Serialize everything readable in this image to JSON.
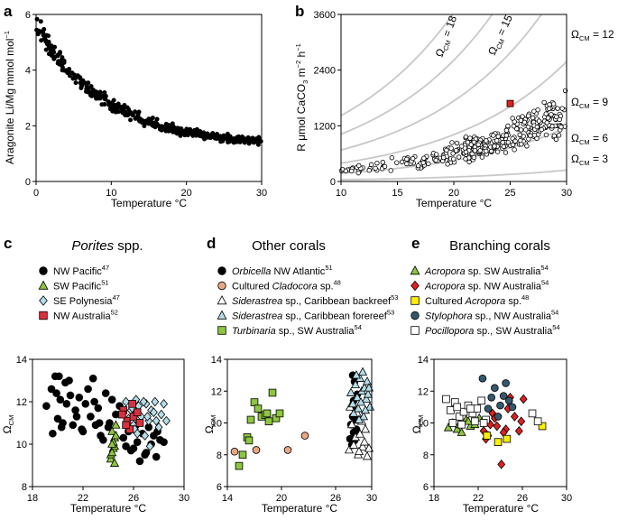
{
  "panels": {
    "a": {
      "letter": "a",
      "xlabel": "Temperature °C",
      "ylabel": "Aragonite Li/Mg mmol mol",
      "ylabel_sup": "−1",
      "xticks": [
        "0",
        "10",
        "20",
        "30"
      ],
      "yticks": [
        "0",
        "2",
        "4",
        "6"
      ]
    },
    "b": {
      "letter": "b",
      "xlabel": "Temperature °C",
      "ylabel_pre": "R μmol CaCO",
      "ylabel_sub": "3",
      "ylabel_post": " m",
      "ylabel_sup1": "−2",
      "ylabel_post2": " h",
      "ylabel_sup2": "−1",
      "xticks": [
        "10",
        "15",
        "20",
        "25",
        "30"
      ],
      "yticks": [
        "0",
        "1200",
        "2400",
        "3600"
      ],
      "omega_labels": [
        "Ω",
        "CM",
        "= 18",
        "= 15",
        "= 12",
        "= 9",
        "= 6",
        "= 3"
      ]
    },
    "c": {
      "letter": "c",
      "title_italic": "Porites",
      "title_rest": " spp.",
      "legend": [
        {
          "text": "NW Pacific",
          "sup": "47"
        },
        {
          "text": "SW Pacific",
          "sup": "51"
        },
        {
          "text": "SE Polynesia",
          "sup": "47"
        },
        {
          "text": "NW Australia",
          "sup": "52"
        }
      ],
      "xticks": [
        "18",
        "22",
        "26",
        "30"
      ],
      "yticks": [
        "8",
        "10",
        "12",
        "14"
      ],
      "xlabel": "Temperature °C",
      "ylabel": "Ω",
      "ylabel_sub": "CM"
    },
    "d": {
      "letter": "d",
      "title": "Other corals",
      "legend": [
        {
          "it": "Orbicella",
          "rest": " NW Atlantic",
          "sup": "51"
        },
        {
          "pre": "Cultured ",
          "it": "Cladocora",
          "rest": " sp.",
          "sup": "48"
        },
        {
          "it": "Siderastrea",
          "rest": " sp., Caribbean backreef",
          "sup": "53"
        },
        {
          "it": "Siderastrea",
          "rest": " sp., Caribbean forereef",
          "sup": "53"
        },
        {
          "it": "Turbinaria",
          "rest": " sp., SW Australia",
          "sup": "54"
        }
      ],
      "xticks": [
        "14",
        "20",
        "26",
        "30"
      ],
      "yticks": [
        "6",
        "8",
        "10",
        "12",
        "14"
      ],
      "xlabel": "Temperature °C",
      "ylabel": "Ω",
      "ylabel_sub": "CM"
    },
    "e": {
      "letter": "e",
      "title": "Branching corals",
      "legend": [
        {
          "it": "Acropora",
          "rest": " sp. SW Australia",
          "sup": "54"
        },
        {
          "it": "Acropora",
          "rest": " sp. NW Australia",
          "sup": "54"
        },
        {
          "pre": "Cultured ",
          "it": "Acropora",
          "rest": " sp.",
          "sup": "48"
        },
        {
          "it": "Stylophora",
          "rest": " sp., NW Australia",
          "sup": "54"
        },
        {
          "it": "Pocillopora",
          "rest": " sp., SW Australia",
          "sup": "54"
        }
      ],
      "xticks": [
        "18",
        "22",
        "26",
        "30"
      ],
      "yticks": [
        "6",
        "8",
        "10",
        "12",
        "14"
      ],
      "xlabel": "Temperature °C",
      "ylabel": "Ω",
      "ylabel_sub": "CM"
    }
  },
  "colors": {
    "green": "#8dc63f",
    "light_blue": "#b3dde8",
    "red": "#e02020",
    "orange": "#e8a882",
    "yellow": "#ffee00",
    "teal": "#34596e",
    "grey_curve": "#c8c8c8",
    "nw_aus": "#d93040"
  },
  "chart_data": [
    {
      "panel": "a",
      "type": "scatter",
      "xlim": [
        0,
        30
      ],
      "ylim": [
        0,
        6
      ],
      "title": "",
      "xlabel": "Temperature °C",
      "ylabel": "Aragonite Li/Mg mmol mol−1",
      "series": [
        {
          "name": "Aragonite Li/Mg",
          "x_range": [
            0,
            30
          ],
          "trend_start": 5.5,
          "trend_end": 1.3,
          "n": 420
        }
      ]
    },
    {
      "panel": "b",
      "type": "scatter",
      "xlim": [
        10,
        30
      ],
      "ylim": [
        0,
        3600
      ],
      "xlabel": "Temperature °C",
      "ylabel": "R μmol CaCO3 m−2 h−1",
      "curves": [
        {
          "omega": 18
        },
        {
          "omega": 15
        },
        {
          "omega": 12
        },
        {
          "omega": 9
        },
        {
          "omega": 6
        },
        {
          "omega": 3
        }
      ],
      "highlight": {
        "x": 25,
        "y": 1680
      },
      "n": 340
    },
    {
      "panel": "c",
      "type": "scatter",
      "xlim": [
        18,
        30
      ],
      "ylim": [
        8,
        14
      ],
      "xlabel": "Temperature °C",
      "ylabel": "ΩCM",
      "series": [
        {
          "name": "NW Pacific",
          "marker": "circle",
          "x": [
            19.1,
            19.5,
            19.8,
            20.2,
            20.0,
            20.6,
            21.0,
            21.4,
            20.3,
            19.6,
            20.9,
            21.7,
            22.2,
            22.6,
            23.0,
            23.4,
            23.8,
            22.4,
            21.9,
            22.9,
            24.1,
            24.6,
            25.2,
            25.6,
            26.0,
            26.3,
            26.7,
            27.0,
            27.4,
            27.8,
            28.1,
            24.9,
            25.4,
            26.5,
            27.2,
            27.6,
            20.4,
            21.2,
            22.8,
            23.6,
            19.9,
            20.7,
            21.5,
            23.2,
            24.3,
            26.9,
            27.9,
            25.8,
            26.2,
            28.4,
            20.1,
            22.0,
            23.3,
            24.0
          ],
          "y": [
            11.8,
            12.6,
            13.2,
            12.1,
            11.2,
            12.9,
            12.3,
            11.6,
            10.8,
            10.5,
            13.0,
            12.2,
            11.9,
            11.3,
            10.9,
            10.4,
            12.4,
            12.6,
            10.7,
            12.0,
            11.0,
            11.4,
            10.3,
            10.6,
            9.8,
            10.1,
            10.5,
            9.6,
            10.0,
            9.4,
            10.2,
            11.8,
            9.9,
            9.2,
            10.8,
            10.4,
            11.0,
            10.9,
            13.1,
            10.2,
            12.4,
            11.9,
            11.3,
            11.7,
            12.1,
            9.5,
            10.6,
            9.7,
            10.9,
            10.1,
            13.2,
            10.6,
            11.0,
            10.8
          ]
        },
        {
          "name": "SW Pacific",
          "marker": "triangle",
          "x": [
            24.2,
            24.4,
            24.5,
            24.3,
            24.6,
            24.2,
            24.5,
            24.4,
            24.3,
            24.6,
            24.5,
            24.3
          ],
          "y": [
            9.3,
            9.8,
            10.3,
            10.6,
            10.9,
            9.5,
            9.9,
            10.1,
            9.6,
            10.4,
            9.1,
            10.0
          ]
        },
        {
          "name": "SE Polynesia",
          "marker": "diamond",
          "x": [
            25.4,
            25.8,
            26.2,
            26.6,
            27.0,
            27.4,
            27.8,
            28.2,
            26.0,
            26.4,
            26.8,
            27.2,
            27.6,
            28.0,
            25.6,
            26.9,
            27.3,
            28.4,
            26.1,
            27.7,
            25.9,
            26.3,
            27.1,
            28.6
          ],
          "y": [
            12.0,
            11.6,
            12.1,
            11.3,
            11.9,
            11.6,
            11.1,
            11.4,
            10.9,
            11.8,
            12.0,
            11.1,
            11.5,
            10.8,
            11.2,
            10.4,
            9.9,
            11.9,
            10.7,
            12.0,
            11.7,
            10.5,
            11.3,
            11.1
          ]
        },
        {
          "name": "NW Australia",
          "marker": "square",
          "x": [
            25.2,
            25.5,
            25.7,
            26.0,
            26.3,
            25.4,
            25.9,
            26.5,
            25.1
          ],
          "y": [
            11.6,
            11.1,
            10.7,
            11.3,
            11.5,
            10.9,
            11.9,
            11.0,
            11.4
          ]
        }
      ]
    },
    {
      "panel": "d",
      "type": "scatter",
      "xlim": [
        14,
        30
      ],
      "ylim": [
        6,
        14
      ],
      "xlabel": "Temperature °C",
      "ylabel": "ΩCM",
      "series": [
        {
          "name": "Orbicella",
          "marker": "circle",
          "x": [
            27.6,
            27.8,
            28.0,
            28.1,
            28.3,
            27.9,
            28.2,
            28.0,
            28.4,
            27.7,
            28.1,
            27.9,
            28.3
          ],
          "y": [
            9.0,
            8.6,
            9.4,
            8.9,
            9.6,
            10.4,
            10.8,
            11.4,
            11.8,
            9.9,
            12.6,
            13.0,
            10.2
          ]
        },
        {
          "name": "Cultured Cladocora",
          "marker": "circle",
          "x": [
            14.8,
            17.2,
            20.7,
            22.6
          ],
          "y": [
            8.2,
            8.3,
            8.3,
            9.2
          ]
        },
        {
          "name": "Siderastrea backreef",
          "marker": "triangle",
          "x": [
            27.5,
            28.0,
            28.5,
            29.0,
            29.5,
            28.2,
            28.7,
            29.2,
            27.8,
            28.9,
            29.7,
            28.4,
            29.3,
            27.6,
            28.6
          ],
          "y": [
            8.3,
            8.6,
            8.0,
            8.5,
            7.9,
            9.1,
            9.3,
            8.8,
            9.9,
            10.1,
            8.4,
            10.6,
            9.6,
            11.0,
            8.2
          ]
        },
        {
          "name": "Siderastrea forereef",
          "marker": "triangle",
          "x": [
            27.9,
            28.4,
            28.9,
            29.4,
            29.8,
            28.2,
            28.7,
            29.2,
            29.6,
            28.0,
            28.5,
            29.1,
            29.5,
            28.3,
            28.8,
            29.3,
            27.7,
            29.7,
            28.6,
            29.0
          ],
          "y": [
            11.2,
            11.6,
            12.0,
            11.5,
            11.0,
            12.4,
            12.8,
            12.2,
            11.8,
            10.6,
            10.9,
            10.4,
            12.6,
            13.0,
            11.3,
            10.8,
            11.9,
            12.2,
            10.2,
            13.2
          ]
        },
        {
          "name": "Turbinaria",
          "marker": "square",
          "x": [
            15.3,
            15.7,
            16.2,
            16.6,
            17.0,
            17.4,
            17.8,
            18.2,
            18.6,
            19.0,
            19.4,
            19.8,
            16.4,
            18.4
          ],
          "y": [
            7.3,
            8.0,
            9.1,
            10.2,
            11.3,
            10.9,
            10.4,
            10.5,
            10.1,
            11.9,
            10.3,
            10.6,
            8.9,
            10.6
          ]
        }
      ]
    },
    {
      "panel": "e",
      "type": "scatter",
      "xlim": [
        18,
        30
      ],
      "ylim": [
        6,
        14
      ],
      "xlabel": "Temperature °C",
      "ylabel": "ΩCM",
      "series": [
        {
          "name": "Acropora SW Australia",
          "marker": "triangle",
          "x": [
            19.3,
            19.7,
            20.1,
            20.5,
            20.9,
            21.3,
            21.7,
            22.1,
            20.3,
            21.1
          ],
          "y": [
            9.7,
            10.0,
            9.6,
            9.4,
            10.2,
            9.8,
            9.9,
            10.3,
            9.9,
            10.1
          ]
        },
        {
          "name": "Acropora NW Australia",
          "marker": "diamond",
          "x": [
            22.5,
            22.9,
            23.3,
            23.7,
            24.1,
            24.5,
            24.9,
            25.3,
            25.7,
            26.1,
            22.7,
            23.5,
            24.3,
            25.9,
            23.1,
            24.7
          ],
          "y": [
            9.5,
            9.2,
            10.6,
            9.8,
            7.4,
            9.6,
            11.6,
            10.4,
            9.5,
            11.5,
            9.0,
            10.3,
            9.4,
            10.1,
            9.9,
            10.9
          ]
        },
        {
          "name": "Cultured Acropora",
          "marker": "square",
          "x": [
            22.8,
            23.8,
            24.6,
            27.8
          ],
          "y": [
            9.2,
            8.8,
            9.0,
            9.8
          ]
        },
        {
          "name": "Stylophora",
          "marker": "circle",
          "x": [
            22.4,
            22.9,
            23.2,
            23.5,
            24.0,
            24.5,
            24.8,
            25.1,
            23.8,
            24.3
          ],
          "y": [
            12.8,
            10.9,
            11.6,
            12.2,
            11.1,
            12.5,
            11.4,
            11.0,
            10.4,
            11.7
          ]
        },
        {
          "name": "Pocillopora",
          "marker": "square",
          "x": [
            19.1,
            19.5,
            19.9,
            20.3,
            20.7,
            21.1,
            21.5,
            21.9,
            22.3,
            22.7,
            20.5,
            21.7,
            19.7,
            27.4,
            26.9,
            22.5,
            21.3,
            20.1
          ],
          "y": [
            11.5,
            10.8,
            11.3,
            10.4,
            10.7,
            11.1,
            10.6,
            10.9,
            11.4,
            10.2,
            9.9,
            10.1,
            10.0,
            10.1,
            10.6,
            10.0,
            10.9,
            11.0
          ]
        }
      ]
    }
  ]
}
